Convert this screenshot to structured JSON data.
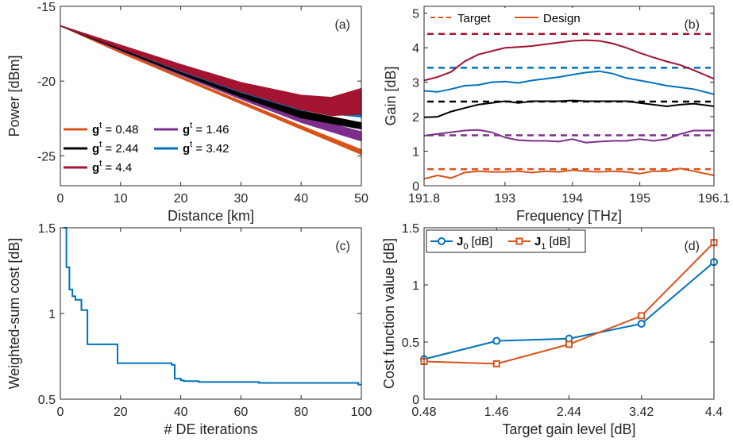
{
  "colors": {
    "orange": "#D95319",
    "purple": "#7E2F8E",
    "black": "#000000",
    "blue": "#0072BD",
    "red": "#A2142F",
    "axis": "#262626"
  },
  "chart_data": [
    {
      "panel": "(a)",
      "type": "area",
      "xlabel": "Distance [km]",
      "ylabel": "Power [dBm]",
      "xlim": [
        0,
        50
      ],
      "ylim": [
        -27,
        -15
      ],
      "xticks": [
        "0",
        "10",
        "20",
        "30",
        "40",
        "50"
      ],
      "yticks": [
        "-15",
        "-20",
        "-25"
      ],
      "legend_position": "lower-left",
      "series": [
        {
          "name_prefix": "g",
          "name_sup": "t",
          "name_value": " = 0.48",
          "color": "#D95319",
          "x": [
            0,
            10,
            20,
            30,
            40,
            50
          ],
          "upper": [
            -16.3,
            -18.0,
            -19.7,
            -21.35,
            -23.0,
            -24.6
          ],
          "lower": [
            -16.3,
            -18.1,
            -19.8,
            -21.5,
            -23.2,
            -24.9
          ]
        },
        {
          "name_prefix": "g",
          "name_sup": "t",
          "name_value": " = 1.46",
          "color": "#7E2F8E",
          "x": [
            0,
            10,
            20,
            30,
            40,
            50
          ],
          "upper": [
            -16.3,
            -17.85,
            -19.45,
            -20.95,
            -22.3,
            -23.4
          ],
          "lower": [
            -16.3,
            -17.95,
            -19.6,
            -21.2,
            -22.75,
            -24.0
          ]
        },
        {
          "name_prefix": "g",
          "name_sup": "t",
          "name_value": " = 2.44",
          "color": "#000000",
          "x": [
            0,
            10,
            20,
            30,
            40,
            50
          ],
          "upper": [
            -16.3,
            -17.8,
            -19.35,
            -20.8,
            -22.0,
            -22.8
          ],
          "lower": [
            -16.3,
            -17.9,
            -19.5,
            -21.05,
            -22.45,
            -23.2
          ]
        },
        {
          "name_prefix": "g",
          "name_sup": "t",
          "name_value": " = 3.42",
          "color": "#0072BD",
          "x": [
            0,
            10,
            20,
            30,
            40,
            50
          ],
          "upper": [
            -16.3,
            -17.75,
            -19.25,
            -20.6,
            -21.8,
            -22.2
          ],
          "lower": [
            -16.3,
            -17.8,
            -19.35,
            -20.75,
            -21.95,
            -22.4
          ]
        },
        {
          "name_prefix": "g",
          "name_sup": "t",
          "name_value": " = 4.4",
          "color": "#A2142F",
          "x": [
            0,
            10,
            20,
            30,
            40,
            45,
            50
          ],
          "upper": [
            -16.3,
            -17.6,
            -18.9,
            -20.1,
            -20.95,
            -21.1,
            -20.5
          ],
          "lower": [
            -16.3,
            -17.8,
            -19.3,
            -20.7,
            -21.9,
            -22.3,
            -22.2
          ]
        }
      ]
    },
    {
      "panel": "(b)",
      "type": "line",
      "xlabel": "Frequency [THz]",
      "ylabel": "Gain [dB]",
      "xlim": [
        191.8,
        196.1
      ],
      "ylim": [
        0,
        5.2
      ],
      "xticks": [
        "191.8",
        "193",
        "194",
        "195",
        "196.1"
      ],
      "yticks": [
        "0",
        "1",
        "2",
        "3",
        "4",
        "5"
      ],
      "legend_position": "top-left",
      "legend": [
        "Target",
        "Design"
      ],
      "targets": [
        {
          "value": 0.48,
          "color": "#D95319"
        },
        {
          "value": 1.46,
          "color": "#7E2F8E"
        },
        {
          "value": 2.44,
          "color": "#000000"
        },
        {
          "value": 3.42,
          "color": "#0072BD"
        },
        {
          "value": 4.4,
          "color": "#A2142F"
        }
      ],
      "x": [
        191.8,
        192.0,
        192.2,
        192.4,
        192.6,
        192.8,
        193.0,
        193.2,
        193.4,
        193.6,
        193.8,
        194.0,
        194.2,
        194.4,
        194.6,
        194.8,
        195.0,
        195.2,
        195.4,
        195.6,
        195.8,
        196.1
      ],
      "series": [
        {
          "color": "#D95319",
          "values": [
            0.2,
            0.3,
            0.22,
            0.38,
            0.42,
            0.4,
            0.4,
            0.42,
            0.38,
            0.42,
            0.4,
            0.45,
            0.42,
            0.4,
            0.42,
            0.4,
            0.35,
            0.42,
            0.42,
            0.5,
            0.42,
            0.3
          ]
        },
        {
          "color": "#7E2F8E",
          "values": [
            1.45,
            1.5,
            1.55,
            1.6,
            1.62,
            1.55,
            1.4,
            1.32,
            1.3,
            1.3,
            1.28,
            1.35,
            1.25,
            1.28,
            1.3,
            1.3,
            1.35,
            1.3,
            1.35,
            1.5,
            1.6,
            1.6
          ]
        },
        {
          "color": "#000000",
          "values": [
            1.98,
            2.0,
            2.15,
            2.25,
            2.35,
            2.4,
            2.45,
            2.4,
            2.45,
            2.45,
            2.45,
            2.47,
            2.45,
            2.45,
            2.45,
            2.45,
            2.4,
            2.35,
            2.3,
            2.35,
            2.38,
            2.3
          ]
        },
        {
          "color": "#0072BD",
          "values": [
            2.75,
            2.72,
            2.8,
            2.9,
            2.92,
            3.0,
            3.02,
            2.98,
            3.05,
            3.1,
            3.15,
            3.22,
            3.28,
            3.32,
            3.25,
            3.12,
            3.05,
            2.98,
            2.9,
            2.85,
            2.8,
            2.65
          ]
        },
        {
          "color": "#A2142F",
          "values": [
            3.05,
            3.15,
            3.3,
            3.6,
            3.8,
            3.9,
            4.0,
            4.02,
            4.05,
            4.1,
            4.15,
            4.2,
            4.22,
            4.2,
            4.12,
            4.0,
            3.85,
            3.72,
            3.6,
            3.5,
            3.35,
            3.1
          ]
        }
      ]
    },
    {
      "panel": "(c)",
      "type": "line",
      "xlabel": "# DE iterations",
      "ylabel": "Weighted-sum cost [dB]",
      "xlim": [
        0,
        100
      ],
      "ylim": [
        0.5,
        1.5
      ],
      "xticks": [
        "0",
        "20",
        "40",
        "60",
        "80",
        "100"
      ],
      "yticks": [
        "0.5",
        "1",
        "1.5"
      ],
      "series": [
        {
          "color": "#0072BD",
          "x": [
            1,
            2,
            3,
            4,
            5,
            6,
            7,
            8,
            9,
            18,
            19,
            33,
            37,
            38,
            40,
            41,
            45,
            46,
            65,
            66,
            98,
            99,
            100
          ],
          "values": [
            1.52,
            1.27,
            1.14,
            1.1,
            1.08,
            1.08,
            1.02,
            1.02,
            0.82,
            0.82,
            0.71,
            0.71,
            0.7,
            0.62,
            0.61,
            0.605,
            0.605,
            0.6,
            0.6,
            0.595,
            0.595,
            0.585,
            0.585
          ]
        }
      ]
    },
    {
      "panel": "(d)",
      "type": "line",
      "xlabel": "Target gain level [dB]",
      "ylabel": "Cost function value [dB]",
      "ylim": [
        0,
        1.5
      ],
      "categories": [
        "0.48",
        "1.46",
        "2.44",
        "3.42",
        "4.4"
      ],
      "yticks": [
        "0",
        "0.5",
        "1",
        "1.5"
      ],
      "legend_position": "top-left",
      "series": [
        {
          "name_prefix": "J",
          "name_sub": "0",
          "name_suffix": " [dB]",
          "color": "#0072BD",
          "marker": "circle",
          "values": [
            0.35,
            0.51,
            0.53,
            0.66,
            1.2
          ]
        },
        {
          "name_prefix": "J",
          "name_sub": "1",
          "name_suffix": " [dB]",
          "color": "#D95319",
          "marker": "square",
          "values": [
            0.33,
            0.31,
            0.48,
            0.73,
            1.37
          ]
        }
      ]
    }
  ]
}
